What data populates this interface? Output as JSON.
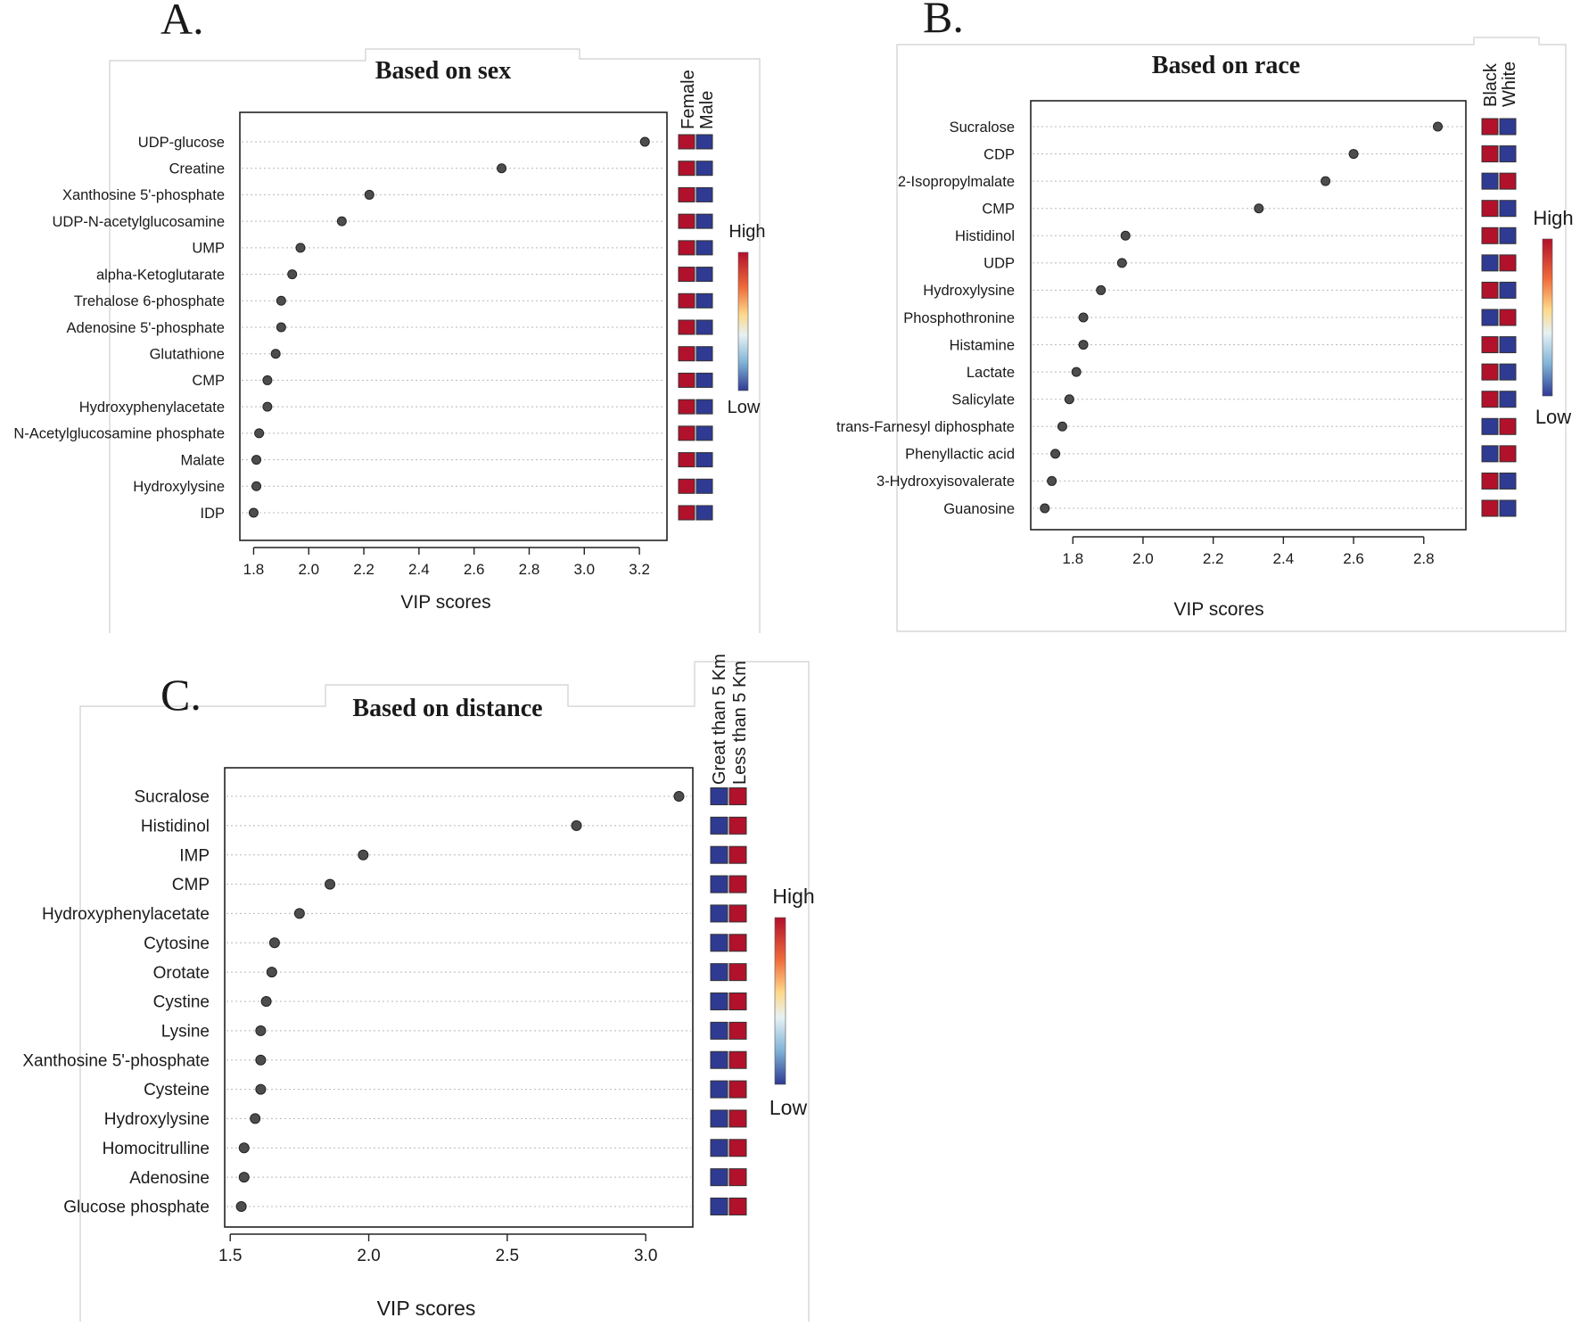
{
  "colors": {
    "high": "#b2112b",
    "low": "#2f3a93"
  },
  "legend": {
    "high": "High",
    "low": "Low"
  },
  "chart_data": [
    {
      "type": "scatter",
      "panel": "A.",
      "title": "Based on sex",
      "xlabel": "VIP scores",
      "xlim": [
        1.75,
        3.3
      ],
      "xticks": [
        1.8,
        2.0,
        2.2,
        2.4,
        2.6,
        2.8,
        3.0,
        3.2
      ],
      "xtick_labels": [
        "1.8",
        "2.0",
        "2.2",
        "2.4",
        "2.6",
        "2.8",
        "3.0",
        "3.2"
      ],
      "groups": [
        "Female",
        "Male"
      ],
      "categories": [
        "UDP-glucose",
        "Creatine",
        "Xanthosine 5'-phosphate",
        "UDP-N-acetylglucosamine",
        "UMP",
        "alpha-Ketoglutarate",
        "Trehalose 6-phosphate",
        "Adenosine 5'-phosphate",
        "Glutathione",
        "CMP",
        "Hydroxyphenylacetate",
        "N-Acetylglucosamine phosphate",
        "Malate",
        "Hydroxylysine",
        "IDP"
      ],
      "values": [
        3.22,
        2.7,
        2.22,
        2.12,
        1.97,
        1.94,
        1.9,
        1.9,
        1.88,
        1.85,
        1.85,
        1.82,
        1.81,
        1.81,
        1.8
      ],
      "heat": [
        [
          "high",
          "low"
        ],
        [
          "high",
          "low"
        ],
        [
          "high",
          "low"
        ],
        [
          "high",
          "low"
        ],
        [
          "high",
          "low"
        ],
        [
          "high",
          "low"
        ],
        [
          "high",
          "low"
        ],
        [
          "high",
          "low"
        ],
        [
          "high",
          "low"
        ],
        [
          "high",
          "low"
        ],
        [
          "high",
          "low"
        ],
        [
          "high",
          "low"
        ],
        [
          "high",
          "low"
        ],
        [
          "high",
          "low"
        ],
        [
          "high",
          "low"
        ]
      ]
    },
    {
      "type": "scatter",
      "panel": "B.",
      "title": "Based on race",
      "xlabel": "VIP scores",
      "xlim": [
        1.68,
        2.92
      ],
      "xticks": [
        1.8,
        2.0,
        2.2,
        2.4,
        2.6,
        2.8
      ],
      "xtick_labels": [
        "1.8",
        "2.0",
        "2.2",
        "2.4",
        "2.6",
        "2.8"
      ],
      "groups": [
        "Black",
        "White"
      ],
      "categories": [
        "Sucralose",
        "CDP",
        "2-Isopropylmalate",
        "CMP",
        "Histidinol",
        "UDP",
        "Hydroxylysine",
        "Phosphothronine",
        "Histamine",
        "Lactate",
        "Salicylate",
        "trans-Farnesyl diphosphate",
        "Phenyllactic acid",
        "3-Hydroxyisovalerate",
        "Guanosine"
      ],
      "values": [
        2.84,
        2.6,
        2.52,
        2.33,
        1.95,
        1.94,
        1.88,
        1.83,
        1.83,
        1.81,
        1.79,
        1.77,
        1.75,
        1.74,
        1.72
      ],
      "heat": [
        [
          "high",
          "low"
        ],
        [
          "high",
          "low"
        ],
        [
          "low",
          "high"
        ],
        [
          "high",
          "low"
        ],
        [
          "high",
          "low"
        ],
        [
          "low",
          "high"
        ],
        [
          "high",
          "low"
        ],
        [
          "low",
          "high"
        ],
        [
          "high",
          "low"
        ],
        [
          "high",
          "low"
        ],
        [
          "high",
          "low"
        ],
        [
          "low",
          "high"
        ],
        [
          "low",
          "high"
        ],
        [
          "high",
          "low"
        ],
        [
          "high",
          "low"
        ]
      ]
    },
    {
      "type": "scatter",
      "panel": "C.",
      "title": "Based on distance",
      "xlabel": "VIP scores",
      "xlim": [
        1.48,
        3.17
      ],
      "xticks": [
        1.5,
        2.0,
        2.5,
        3.0
      ],
      "xtick_labels": [
        "1.5",
        "2.0",
        "2.5",
        "3.0"
      ],
      "groups": [
        "Great than 5 Km",
        "Less than 5 Km"
      ],
      "categories": [
        "Sucralose",
        "Histidinol",
        "IMP",
        "CMP",
        "Hydroxyphenylacetate",
        "Cytosine",
        "Orotate",
        "Cystine",
        "Lysine",
        "Xanthosine 5'-phosphate",
        "Cysteine",
        "Hydroxylysine",
        "Homocitrulline",
        "Adenosine",
        "Glucose phosphate"
      ],
      "values": [
        3.12,
        2.75,
        1.98,
        1.86,
        1.75,
        1.66,
        1.65,
        1.63,
        1.61,
        1.61,
        1.61,
        1.59,
        1.55,
        1.55,
        1.54
      ],
      "heat": [
        [
          "low",
          "high"
        ],
        [
          "low",
          "high"
        ],
        [
          "low",
          "high"
        ],
        [
          "low",
          "high"
        ],
        [
          "low",
          "high"
        ],
        [
          "low",
          "high"
        ],
        [
          "low",
          "high"
        ],
        [
          "low",
          "high"
        ],
        [
          "low",
          "high"
        ],
        [
          "low",
          "high"
        ],
        [
          "low",
          "high"
        ],
        [
          "low",
          "high"
        ],
        [
          "low",
          "high"
        ],
        [
          "low",
          "high"
        ],
        [
          "low",
          "high"
        ]
      ]
    }
  ]
}
